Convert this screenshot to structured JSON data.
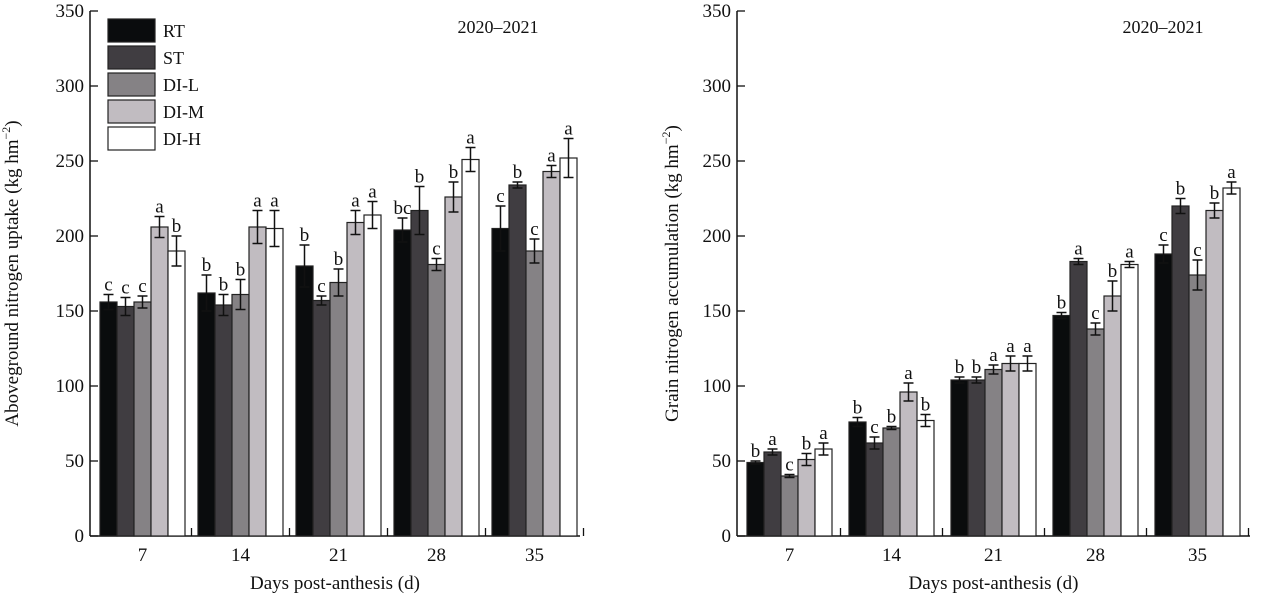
{
  "chart_data": [
    {
      "type": "bar",
      "title": "",
      "annotation": "2020–2021",
      "xlabel": "Days post-anthesis (d)",
      "ylabel": "Aboveground nitrogen uptake (kg hm",
      "ylabel_sup": "−2",
      "ylabel_end": ")",
      "ylim": [
        0,
        350
      ],
      "yticks": [
        0,
        50,
        100,
        150,
        200,
        250,
        300,
        350
      ],
      "categories": [
        "7",
        "14",
        "21",
        "28",
        "35"
      ],
      "legend": {
        "placement": "top-left",
        "entries": [
          "RT",
          "ST",
          "DI-L",
          "DI-M",
          "DI-H"
        ]
      },
      "series": [
        {
          "name": "RT",
          "color": "#0a0c0d",
          "values": [
            156,
            162,
            180,
            204,
            205
          ],
          "errors": [
            5,
            12,
            14,
            8,
            15
          ],
          "letters": [
            "c",
            "b",
            "b",
            "bc",
            "c"
          ]
        },
        {
          "name": "ST",
          "color": "#403d41",
          "values": [
            153,
            154,
            157,
            217,
            234
          ],
          "errors": [
            6,
            7,
            3,
            16,
            2
          ],
          "letters": [
            "c",
            "b",
            "c",
            "b",
            "b"
          ]
        },
        {
          "name": "DI-L",
          "color": "#858285",
          "values": [
            156,
            161,
            169,
            181,
            190
          ],
          "errors": [
            4,
            10,
            9,
            4,
            8
          ],
          "letters": [
            "c",
            "b",
            "b",
            "c",
            "c"
          ]
        },
        {
          "name": "DI-M",
          "color": "#c1bcc1",
          "values": [
            206,
            206,
            209,
            226,
            243
          ],
          "errors": [
            7,
            11,
            8,
            10,
            4
          ],
          "letters": [
            "a",
            "a",
            "a",
            "b",
            "a"
          ]
        },
        {
          "name": "DI-H",
          "color": "#ffffff",
          "values": [
            190,
            205,
            214,
            251,
            252
          ],
          "errors": [
            10,
            12,
            9,
            8,
            13
          ],
          "letters": [
            "b",
            "a",
            "a",
            "a",
            "a"
          ]
        }
      ]
    },
    {
      "type": "bar",
      "title": "",
      "annotation": "2020–2021",
      "xlabel": "Days post-anthesis (d)",
      "ylabel": "Grain nitrogen accumulation (kg hm",
      "ylabel_sup": "−2",
      "ylabel_end": ")",
      "ylim": [
        0,
        350
      ],
      "yticks": [
        0,
        50,
        100,
        150,
        200,
        250,
        300,
        350
      ],
      "categories": [
        "7",
        "14",
        "21",
        "28",
        "35"
      ],
      "series": [
        {
          "name": "RT",
          "color": "#0a0c0d",
          "values": [
            49,
            76,
            104,
            147,
            188
          ],
          "errors": [
            1,
            3,
            2,
            2,
            6
          ],
          "letters": [
            "b",
            "b",
            "b",
            "b",
            "c"
          ]
        },
        {
          "name": "ST",
          "color": "#403d41",
          "values": [
            56,
            62,
            104,
            183,
            220
          ],
          "errors": [
            2,
            4,
            2,
            2,
            5
          ],
          "letters": [
            "a",
            "c",
            "b",
            "a",
            "b"
          ]
        },
        {
          "name": "DI-L",
          "color": "#858285",
          "values": [
            40,
            72,
            111,
            138,
            174
          ],
          "errors": [
            1,
            1,
            3,
            4,
            10
          ],
          "letters": [
            "c",
            "b",
            "a",
            "c",
            "c"
          ]
        },
        {
          "name": "DI-M",
          "color": "#c1bcc1",
          "values": [
            51,
            96,
            115,
            160,
            217
          ],
          "errors": [
            4,
            6,
            5,
            10,
            5
          ],
          "letters": [
            "b",
            "a",
            "a",
            "b",
            "b"
          ]
        },
        {
          "name": "DI-H",
          "color": "#ffffff",
          "values": [
            58,
            77,
            115,
            181,
            232
          ],
          "errors": [
            4,
            4,
            5,
            2,
            4
          ],
          "letters": [
            "a",
            "b",
            "a",
            "a",
            "a"
          ]
        }
      ]
    }
  ]
}
